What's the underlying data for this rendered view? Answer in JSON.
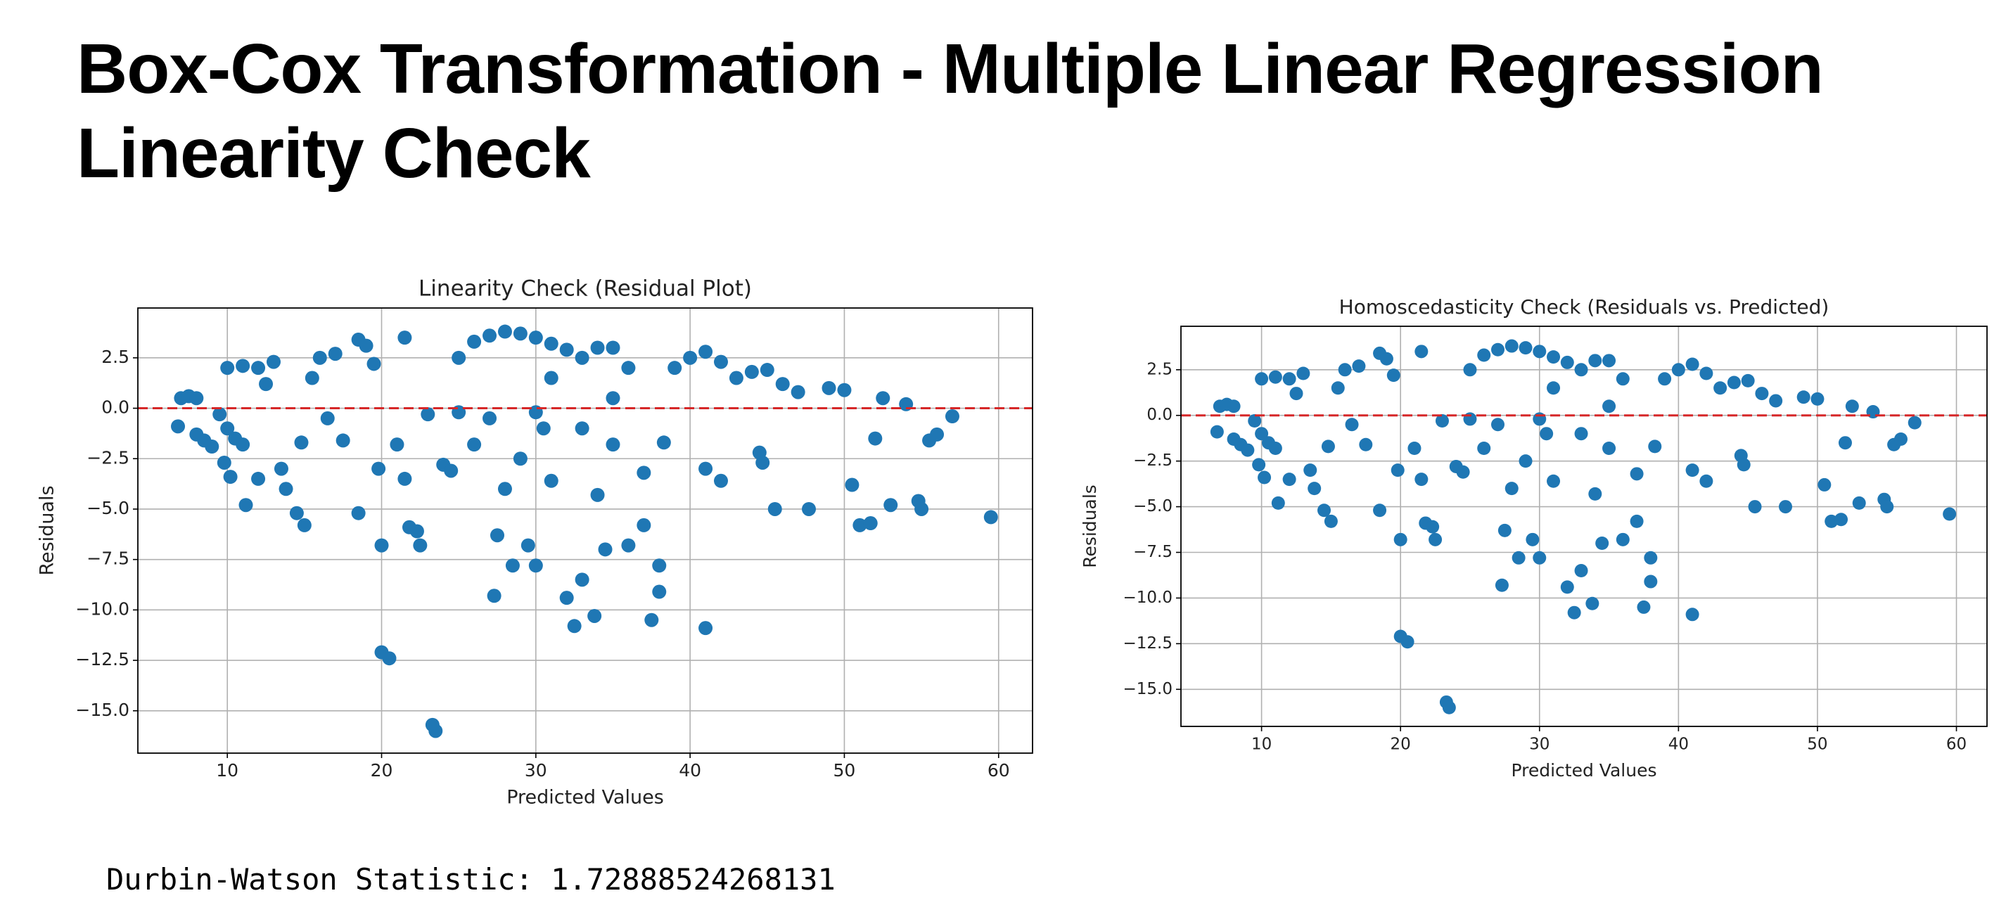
{
  "header": {
    "title": [
      "Box-Cox Transformation - Multiple Linear Regression",
      "Linearity Check"
    ]
  },
  "footer": {
    "text": "Durbin-Watson Statistic: 1.72888524268131"
  },
  "chart_data": [
    {
      "type": "scatter",
      "title": "Linearity Check (Residual Plot)",
      "x_label": "Predicted Values",
      "y_label": "Residuals",
      "color": "#1f77b4",
      "grid": true,
      "hline": 0,
      "hline_color": "#d62728",
      "xlim": [
        4.2,
        62.2
      ],
      "ylim": [
        -17.1,
        4.97
      ],
      "xticks": [
        10,
        20,
        30,
        40,
        50,
        60
      ],
      "yticks": [
        2.5,
        {
          "value": 0,
          "label": "0.0"
        },
        {
          "value": -2.5,
          "label": "−2.5"
        },
        {
          "value": -5,
          "label": "−5.0"
        },
        {
          "value": -7.5,
          "label": "−7.5"
        },
        {
          "value": -10,
          "label": "−10.0"
        },
        {
          "value": -12.5,
          "label": "−12.5"
        },
        {
          "value": -15,
          "label": "−15.0"
        }
      ],
      "x": [
        7,
        7.5,
        8,
        6.8,
        8,
        8.5,
        9,
        9.5,
        10,
        10.5,
        11,
        9.8,
        10.2,
        11.2,
        10,
        11,
        12,
        13,
        12.5,
        13.5,
        12,
        13.8,
        14.5,
        15,
        14.8,
        15.5,
        16,
        17,
        16.5,
        17.5,
        18.5,
        18.5,
        19,
        19.5,
        19.8,
        20,
        20,
        20.5,
        21,
        21.5,
        21.8,
        22.3,
        22.5,
        21.5,
        23.3,
        23.5,
        23,
        24,
        24.5,
        25,
        26,
        27,
        28,
        29,
        30,
        31,
        32,
        33,
        34,
        35,
        36,
        26,
        27,
        27.5,
        27.3,
        28,
        28.5,
        29,
        29.5,
        30,
        30.5,
        31,
        32,
        32.5,
        33,
        33.8,
        34,
        34.5,
        35,
        36,
        37,
        37.5,
        38,
        38,
        38.3,
        39,
        40,
        41,
        42,
        41,
        42,
        41,
        43,
        44,
        45,
        44.5,
        44.7,
        45.5,
        46,
        47,
        47.7,
        49,
        50,
        50.5,
        51,
        51.7,
        52,
        52.5,
        53,
        54,
        54.8,
        55,
        55.5,
        56,
        57,
        59.5,
        35,
        25,
        31,
        33,
        37,
        30
      ],
      "y": [
        0.5,
        0.6,
        0.5,
        -0.9,
        -1.3,
        -1.6,
        -1.9,
        -0.3,
        -1,
        -1.5,
        -1.8,
        -2.7,
        -3.4,
        -4.8,
        2,
        2.1,
        2,
        2.3,
        1.2,
        -3,
        -3.5,
        -4,
        -5.2,
        -5.8,
        -1.7,
        1.5,
        2.5,
        2.7,
        -0.5,
        -1.6,
        -5.2,
        3.4,
        3.1,
        2.2,
        -3,
        -6.8,
        -12.1,
        -12.4,
        -1.8,
        -3.5,
        -5.9,
        -6.1,
        -6.8,
        3.5,
        -15.7,
        -16,
        -0.3,
        -2.8,
        -3.1,
        2.5,
        3.3,
        3.6,
        3.8,
        3.7,
        3.5,
        3.2,
        2.9,
        2.5,
        3,
        3,
        2,
        -1.8,
        -0.5,
        -6.3,
        -9.3,
        -4,
        -7.8,
        -2.5,
        -6.8,
        -7.8,
        -1,
        -3.6,
        -9.4,
        -10.8,
        -8.5,
        -10.3,
        -4.3,
        -7,
        -1.8,
        -6.8,
        -5.8,
        -10.5,
        -7.8,
        -9.1,
        -1.7,
        2,
        2.5,
        2.8,
        2.3,
        -3,
        -3.6,
        -10.9,
        1.5,
        1.8,
        1.9,
        -2.2,
        -2.7,
        -5,
        1.2,
        0.8,
        -5,
        1,
        0.9,
        -3.8,
        -5.8,
        -5.7,
        -1.5,
        0.5,
        -4.8,
        0.2,
        -4.6,
        -5,
        -1.6,
        -1.3,
        -0.4,
        -5.4,
        0.5,
        -0.2,
        1.5,
        -1,
        -3.2,
        -0.2
      ]
    },
    {
      "type": "scatter",
      "title": "Homoscedasticity Check (Residuals vs. Predicted)",
      "x_label": "Predicted Values",
      "y_label": "Residuals",
      "color": "#1f77b4",
      "grid": true,
      "hline": 0,
      "hline_color": "#d62728",
      "xlim": [
        4.2,
        62.2
      ],
      "ylim": [
        -17.03,
        4.88
      ],
      "xticks": [
        10,
        20,
        30,
        40,
        50,
        60
      ],
      "yticks": [
        2.5,
        {
          "value": 0,
          "label": "0.0"
        },
        {
          "value": -2.5,
          "label": "−2.5"
        },
        {
          "value": -5,
          "label": "−5.0"
        },
        {
          "value": -7.5,
          "label": "−7.5"
        },
        {
          "value": -10,
          "label": "−10.0"
        },
        {
          "value": -12.5,
          "label": "−12.5"
        },
        {
          "value": -15,
          "label": "−15.0"
        }
      ],
      "x": [
        7,
        7.5,
        8,
        6.8,
        8,
        8.5,
        9,
        9.5,
        10,
        10.5,
        11,
        9.8,
        10.2,
        11.2,
        10,
        11,
        12,
        13,
        12.5,
        13.5,
        12,
        13.8,
        14.5,
        15,
        14.8,
        15.5,
        16,
        17,
        16.5,
        17.5,
        18.5,
        18.5,
        19,
        19.5,
        19.8,
        20,
        20,
        20.5,
        21,
        21.5,
        21.8,
        22.3,
        22.5,
        21.5,
        23.3,
        23.5,
        23,
        24,
        24.5,
        25,
        26,
        27,
        28,
        29,
        30,
        31,
        32,
        33,
        34,
        35,
        36,
        26,
        27,
        27.5,
        27.3,
        28,
        28.5,
        29,
        29.5,
        30,
        30.5,
        31,
        32,
        32.5,
        33,
        33.8,
        34,
        34.5,
        35,
        36,
        37,
        37.5,
        38,
        38,
        38.3,
        39,
        40,
        41,
        42,
        41,
        42,
        41,
        43,
        44,
        45,
        44.5,
        44.7,
        45.5,
        46,
        47,
        47.7,
        49,
        50,
        50.5,
        51,
        51.7,
        52,
        52.5,
        53,
        54,
        54.8,
        55,
        55.5,
        56,
        57,
        59.5,
        35,
        25,
        31,
        33,
        37,
        30
      ],
      "y": [
        0.5,
        0.6,
        0.5,
        -0.9,
        -1.3,
        -1.6,
        -1.9,
        -0.3,
        -1,
        -1.5,
        -1.8,
        -2.7,
        -3.4,
        -4.8,
        2,
        2.1,
        2,
        2.3,
        1.2,
        -3,
        -3.5,
        -4,
        -5.2,
        -5.8,
        -1.7,
        1.5,
        2.5,
        2.7,
        -0.5,
        -1.6,
        -5.2,
        3.4,
        3.1,
        2.2,
        -3,
        -6.8,
        -12.1,
        -12.4,
        -1.8,
        -3.5,
        -5.9,
        -6.1,
        -6.8,
        3.5,
        -15.7,
        -16,
        -0.3,
        -2.8,
        -3.1,
        2.5,
        3.3,
        3.6,
        3.8,
        3.7,
        3.5,
        3.2,
        2.9,
        2.5,
        3,
        3,
        2,
        -1.8,
        -0.5,
        -6.3,
        -9.3,
        -4,
        -7.8,
        -2.5,
        -6.8,
        -7.8,
        -1,
        -3.6,
        -9.4,
        -10.8,
        -8.5,
        -10.3,
        -4.3,
        -7,
        -1.8,
        -6.8,
        -5.8,
        -10.5,
        -7.8,
        -9.1,
        -1.7,
        2,
        2.5,
        2.8,
        2.3,
        -3,
        -3.6,
        -10.9,
        1.5,
        1.8,
        1.9,
        -2.2,
        -2.7,
        -5,
        1.2,
        0.8,
        -5,
        1,
        0.9,
        -3.8,
        -5.8,
        -5.7,
        -1.5,
        0.5,
        -4.8,
        0.2,
        -4.6,
        -5,
        -1.6,
        -1.3,
        -0.4,
        -5.4,
        0.5,
        -0.2,
        1.5,
        -1,
        -3.2,
        -0.2
      ]
    }
  ]
}
